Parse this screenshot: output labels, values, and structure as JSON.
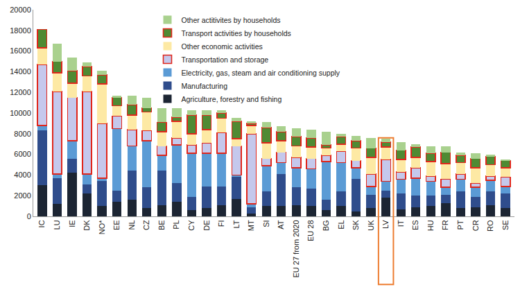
{
  "chart_data": {
    "type": "bar",
    "stacked": true,
    "grid": false,
    "legend": "top right",
    "categories": [
      "IC",
      "LU",
      "IE",
      "DK",
      "NO*",
      "EE",
      "NL",
      "CZ",
      "BE",
      "PL",
      "CY",
      "DE",
      "FI",
      "LT",
      "MT",
      "SI",
      "AT",
      "EU 27 from 2020",
      "EU 28",
      "BG",
      "EL",
      "SK",
      "UK",
      "LV",
      "IT",
      "ES",
      "HU",
      "FR",
      "PT",
      "CR",
      "RO",
      "SE"
    ],
    "ylim": [
      0,
      20000
    ],
    "yticks": [
      0,
      2000,
      4000,
      6000,
      8000,
      10000,
      12000,
      14000,
      16000,
      18000,
      20000
    ],
    "series": [
      {
        "name": "Agriculture, forestry and fishing",
        "color": "#1c2533",
        "values": [
          3000,
          1200,
          4200,
          2200,
          1000,
          1400,
          1600,
          800,
          1100,
          1400,
          600,
          800,
          1100,
          1700,
          300,
          1000,
          1000,
          1100,
          1000,
          600,
          1000,
          500,
          800,
          1800,
          700,
          900,
          1000,
          1300,
          800,
          900,
          1100,
          800
        ]
      },
      {
        "name": "Manufacturing",
        "color": "#2f4d8c",
        "values": [
          5300,
          2500,
          1400,
          900,
          2400,
          1100,
          2800,
          2000,
          3300,
          1800,
          1300,
          2100,
          1800,
          2100,
          600,
          1400,
          3100,
          1700,
          1700,
          1000,
          1400,
          3100,
          1300,
          700,
          1500,
          1100,
          1000,
          800,
          1600,
          1000,
          1300,
          1400
        ]
      },
      {
        "name": "Electricity, gas, steam and air conditioning supply",
        "color": "#5b9bd5",
        "values": [
          500,
          400,
          1700,
          1000,
          300,
          6000,
          2400,
          4500,
          1500,
          3700,
          4200,
          3200,
          3200,
          200,
          300,
          2500,
          1100,
          1900,
          1900,
          3700,
          2800,
          1100,
          800,
          900,
          1400,
          1700,
          1400,
          700,
          1200,
          900,
          1100,
          700
        ]
      },
      {
        "name": "Transportation and storage",
        "color": "#c5c8ec",
        "line_style": "outlined",
        "values": [
          5900,
          8000,
          4200,
          8000,
          5300,
          1200,
          1600,
          1000,
          900,
          700,
          800,
          1000,
          2000,
          2800,
          6800,
          700,
          1000,
          1000,
          1000,
          600,
          1100,
          700,
          1200,
          2100,
          700,
          1000,
          500,
          800,
          500,
          400,
          400,
          900
        ]
      },
      {
        "name": "Other economic activities",
        "color": "#fde9a4",
        "values": [
          1600,
          1800,
          1400,
          1500,
          3800,
          1000,
          1400,
          1800,
          1400,
          1600,
          1100,
          1300,
          1400,
          700,
          800,
          1500,
          1100,
          1100,
          1100,
          700,
          700,
          1200,
          1600,
          1200,
          1200,
          1000,
          1400,
          1500,
          1100,
          1500,
          1100,
          900
        ]
      },
      {
        "name": "Transport activities by households",
        "color": "#4f8a33",
        "line_style": "outlined",
        "values": [
          1800,
          1100,
          1200,
          900,
          900,
          800,
          1000,
          400,
          900,
          400,
          1800,
          1400,
          500,
          1700,
          200,
          1500,
          900,
          900,
          900,
          300,
          700,
          700,
          900,
          500,
          900,
          1000,
          800,
          1100,
          700,
          900,
          800,
          700
        ]
      },
      {
        "name": "Other actitivites by households",
        "color": "#a9d18e",
        "values": [
          0,
          1700,
          1300,
          400,
          400,
          200,
          900,
          1000,
          1400,
          900,
          500,
          500,
          300,
          300,
          200,
          500,
          500,
          800,
          800,
          1300,
          300,
          500,
          1000,
          300,
          800,
          300,
          700,
          600,
          300,
          500,
          200,
          100
        ]
      }
    ]
  }
}
